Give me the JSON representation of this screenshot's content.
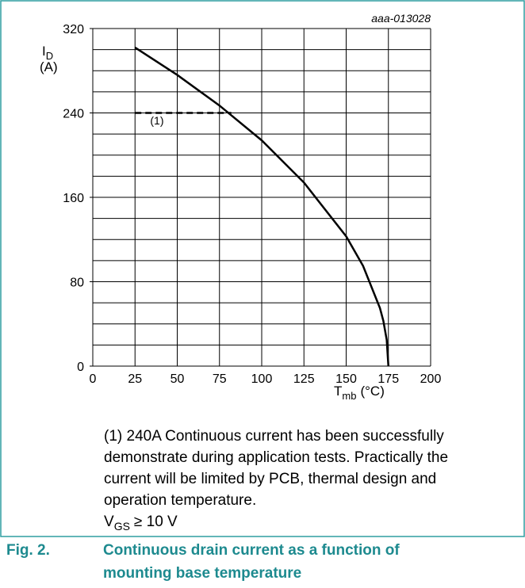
{
  "chart_data": {
    "type": "line",
    "figure_id": "aaa-013028",
    "ylabel": {
      "main": "I",
      "sub": "D",
      "unit": "(A)"
    },
    "xlabel": {
      "main": "T",
      "sub": "mb",
      "unit": "(°C)"
    },
    "xlim": [
      0,
      200
    ],
    "ylim": [
      0,
      320
    ],
    "xticks": [
      0,
      25,
      50,
      75,
      100,
      125,
      150,
      175,
      200
    ],
    "yticks": [
      0,
      80,
      160,
      240,
      320
    ],
    "y_gridlines": [
      0,
      20,
      40,
      60,
      80,
      100,
      120,
      140,
      160,
      180,
      200,
      220,
      240,
      260,
      280,
      300,
      320
    ],
    "grid": true,
    "series": [
      {
        "color": "#000000",
        "dash": false,
        "x": [
          25,
          50,
          75,
          100,
          125,
          150,
          160,
          170,
          172,
          174,
          175
        ],
        "values": [
          302,
          276,
          247,
          214,
          174,
          123,
          95,
          55,
          43,
          25,
          0
        ]
      },
      {
        "color": "#000000",
        "dash": true,
        "x": [
          25,
          82
        ],
        "values": [
          240,
          240
        ]
      }
    ],
    "annotation": {
      "text": "(1)",
      "x": 38,
      "y": 229
    },
    "note": [
      "(1) 240A Continuous current has been successfully",
      "demonstrate during application tests. Practically the",
      "current will be limited by PCB, thermal design and",
      "operation temperature."
    ],
    "condition": {
      "main": "V",
      "sub": "GS",
      "rest": "≥ 10 V"
    },
    "caption": {
      "number": "Fig. 2.",
      "lines": [
        "Continuous drain current as a function of",
        "mounting base temperature"
      ]
    }
  }
}
